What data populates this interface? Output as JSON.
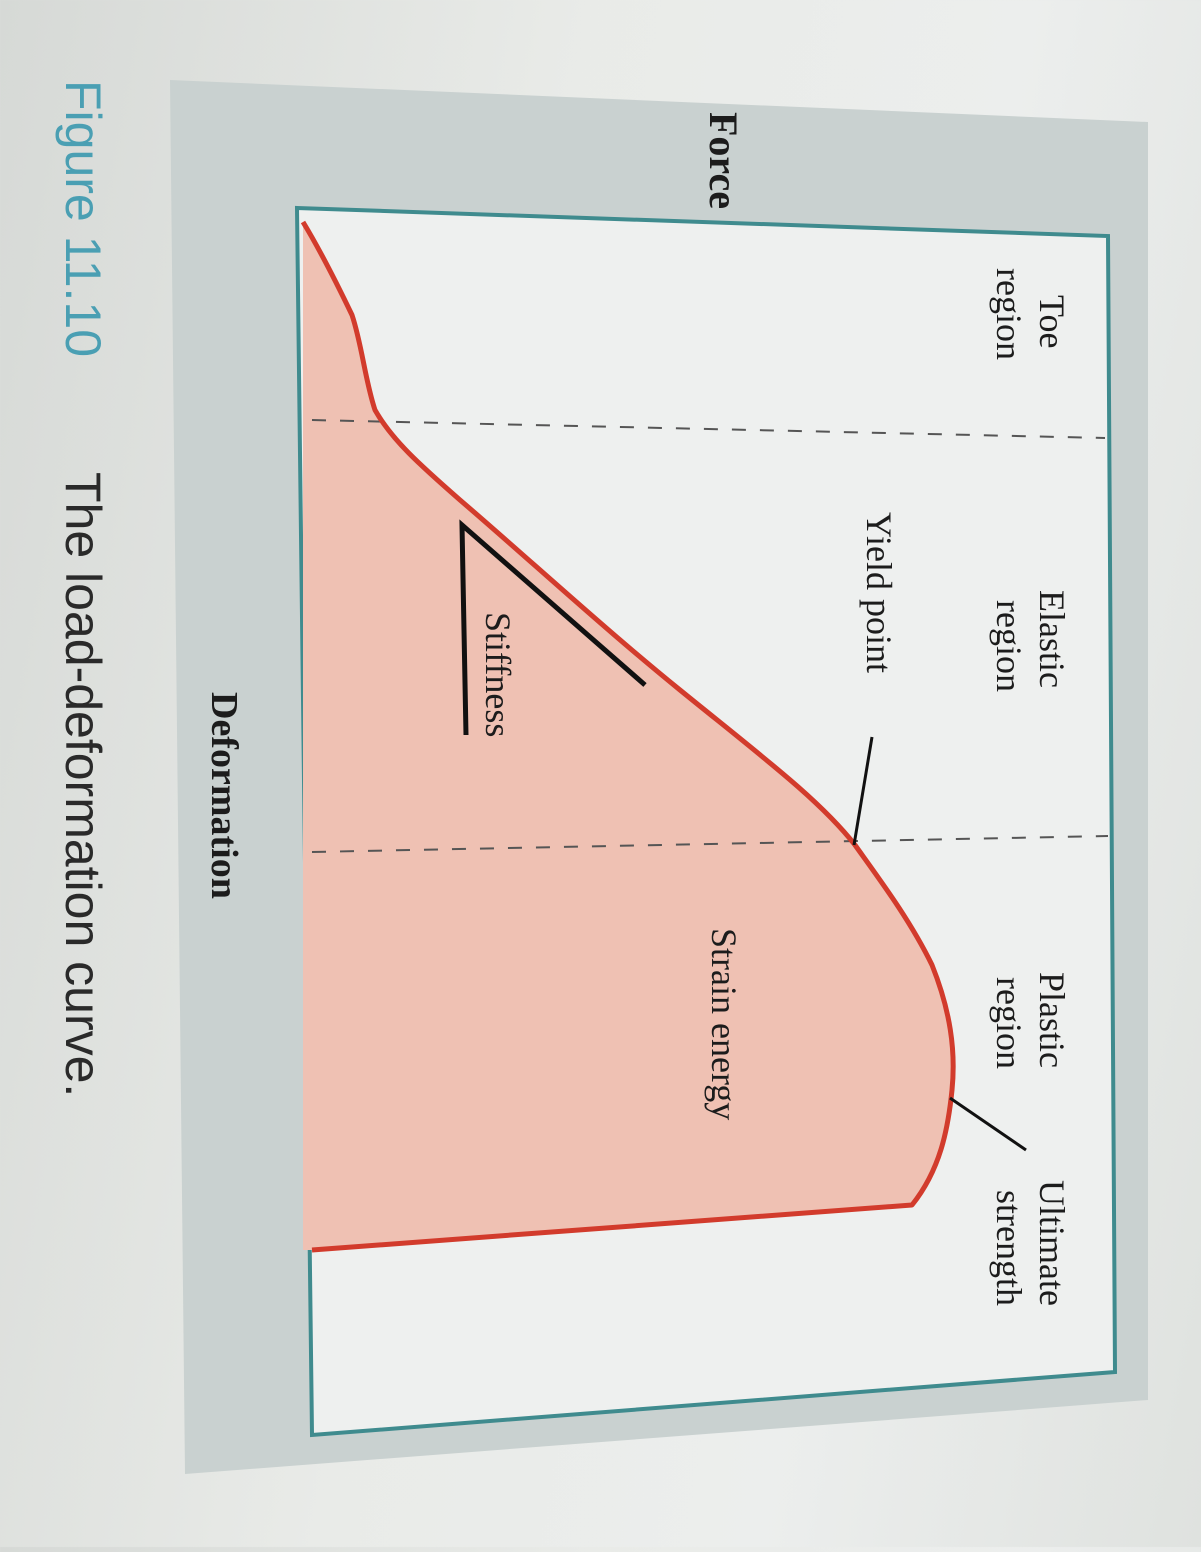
{
  "figure": {
    "caption_number": "Figure 11.10",
    "caption_text": "The load-deformation curve."
  },
  "axes": {
    "y_label": "Force",
    "x_label": "Deformation"
  },
  "regions": {
    "toe": [
      "Toe",
      "region"
    ],
    "elastic": [
      "Elastic",
      "region"
    ],
    "plastic": [
      "Plastic",
      "region"
    ]
  },
  "annotations": {
    "yield_point": "Yield point",
    "ultimate": [
      "Ultimate",
      "strength"
    ],
    "stiffness": "Stiffness",
    "strain_energy": "Strain energy"
  },
  "colors": {
    "curve": "#d23b2c",
    "fill": "#efc1b3",
    "panel": "#c9d1d0",
    "plot_bg": "#eef0ef",
    "frame": "#3f8b8e"
  }
}
